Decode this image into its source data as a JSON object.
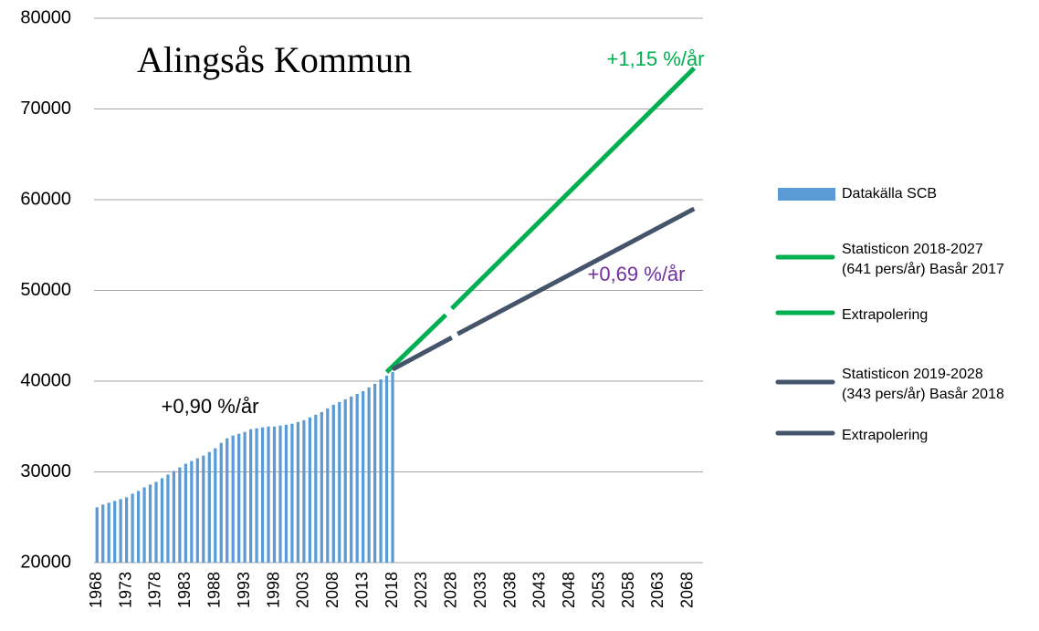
{
  "chart_data": {
    "type": "bar",
    "title": "Alingsås Kommun",
    "xlim": [
      1967.5,
      2070.5
    ],
    "xticks": [
      1968,
      1973,
      1978,
      1983,
      1988,
      1993,
      1998,
      2003,
      2008,
      2013,
      2018,
      2023,
      2028,
      2033,
      2038,
      2043,
      2048,
      2053,
      2058,
      2063,
      2068
    ],
    "ylim": [
      20000,
      80000
    ],
    "yticks": [
      20000,
      30000,
      40000,
      50000,
      60000,
      70000,
      80000
    ],
    "grid": true,
    "legend": "right",
    "series": [
      {
        "name": "Datakälla SCB",
        "type": "bar",
        "color": "#5b9bd5",
        "x": [
          1968,
          1969,
          1970,
          1971,
          1972,
          1973,
          1974,
          1975,
          1976,
          1977,
          1978,
          1979,
          1980,
          1981,
          1982,
          1983,
          1984,
          1985,
          1986,
          1987,
          1988,
          1989,
          1990,
          1991,
          1992,
          1993,
          1994,
          1995,
          1996,
          1997,
          1998,
          1999,
          2000,
          2001,
          2002,
          2003,
          2004,
          2005,
          2006,
          2007,
          2008,
          2009,
          2010,
          2011,
          2012,
          2013,
          2014,
          2015,
          2016,
          2017,
          2018
        ],
        "values": [
          26100,
          26400,
          26600,
          26800,
          27000,
          27200,
          27600,
          27900,
          28300,
          28600,
          28900,
          29300,
          29700,
          30100,
          30500,
          30900,
          31200,
          31500,
          31800,
          32200,
          32600,
          33200,
          33700,
          34000,
          34200,
          34400,
          34700,
          34800,
          34900,
          35000,
          35000,
          35100,
          35200,
          35300,
          35500,
          35700,
          36000,
          36300,
          36600,
          37000,
          37400,
          37700,
          38000,
          38300,
          38600,
          38900,
          39300,
          39700,
          40200,
          40600,
          41000
        ]
      },
      {
        "name": "Statisticon 2018-2027\n(641 pers/år) Basår 2017",
        "type": "line",
        "color": "#00b050",
        "x": [
          2017,
          2027
        ],
        "values": [
          41000,
          47300
        ]
      },
      {
        "name": "Extrapolering",
        "type": "line",
        "color": "#00b050",
        "x": [
          2028,
          2069
        ],
        "values": [
          48000,
          74500
        ]
      },
      {
        "name": "Statisticon 2019-2028\n(343 pers/år) Basår 2018",
        "type": "line",
        "color": "#44546a",
        "x": [
          2018,
          2028
        ],
        "values": [
          41300,
          44800
        ]
      },
      {
        "name": "Extrapolering",
        "type": "line",
        "color": "#44546a",
        "x": [
          2029,
          2069
        ],
        "values": [
          45200,
          59000
        ]
      }
    ],
    "annotations": [
      {
        "text": "+1,15 %/år",
        "color": "#00b050"
      },
      {
        "text": "+0,69 %/år",
        "color": "#7030a0"
      },
      {
        "text": "+0,90 %/år",
        "color": "#000000"
      }
    ]
  }
}
